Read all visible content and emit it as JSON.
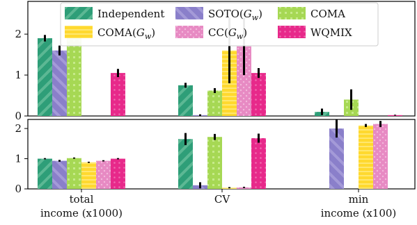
{
  "chart_data": {
    "type": "bar",
    "categories": [
      "total\nincome (x1000)",
      "CV",
      "min\nincome (x100)"
    ],
    "legend": {
      "placement": "top-center",
      "entries": [
        "Independent",
        "SOTO(G_w)",
        "COMA",
        "COMA(G_w)",
        "CC(G_w)",
        "WQMIX"
      ]
    },
    "series_colors": [
      "#2e9e78",
      "#8a7fca",
      "#a6d854",
      "#ffd92f",
      "#e78ac3",
      "#e7298a"
    ],
    "panels": [
      {
        "ylim": [
          0,
          2.8
        ],
        "yticks": [
          0,
          1,
          2
        ],
        "series": [
          {
            "name": "Independent",
            "values": [
              1.9,
              0.75,
              0.1
            ],
            "errors": [
              0.08,
              0.06,
              0.08
            ]
          },
          {
            "name": "SOTO(G_w)",
            "values": [
              1.6,
              0.02,
              0.0
            ],
            "errors": [
              0.12,
              0.02,
              0.0
            ]
          },
          {
            "name": "COMA",
            "values": [
              2.12,
              0.62,
              0.4
            ],
            "errors": [
              0.06,
              0.06,
              0.25
            ]
          },
          {
            "name": "COMA(G_w)",
            "values": [
              0.0,
              1.6,
              0.0
            ],
            "errors": [
              0.0,
              0.8,
              0.0
            ]
          },
          {
            "name": "CC(G_w)",
            "values": [
              0.0,
              1.7,
              0.0
            ],
            "errors": [
              0.0,
              0.7,
              0.0
            ]
          },
          {
            "name": "WQMIX",
            "values": [
              1.05,
              1.05,
              0.02
            ],
            "errors": [
              0.1,
              0.12,
              0.01
            ]
          }
        ]
      },
      {
        "ylim": [
          0,
          2.3
        ],
        "yticks": [
          0,
          1,
          2
        ],
        "series": [
          {
            "name": "Independent",
            "values": [
              1.0,
              1.65,
              0.0
            ],
            "errors": [
              0.02,
              0.2,
              0.0
            ]
          },
          {
            "name": "SOTO(G_w)",
            "values": [
              0.93,
              0.12,
              2.0
            ],
            "errors": [
              0.03,
              0.1,
              0.3
            ]
          },
          {
            "name": "COMA",
            "values": [
              1.02,
              1.72,
              0.0
            ],
            "errors": [
              0.02,
              0.1,
              0.0
            ]
          },
          {
            "name": "COMA(G_w)",
            "values": [
              0.88,
              0.04,
              2.1
            ],
            "errors": [
              0.02,
              0.02,
              0.05
            ]
          },
          {
            "name": "CC(G_w)",
            "values": [
              0.93,
              0.05,
              2.15
            ],
            "errors": [
              0.02,
              0.02,
              0.1
            ]
          },
          {
            "name": "WQMIX",
            "values": [
              1.0,
              1.68,
              0.0
            ],
            "errors": [
              0.02,
              0.15,
              0.0
            ]
          }
        ]
      }
    ]
  }
}
